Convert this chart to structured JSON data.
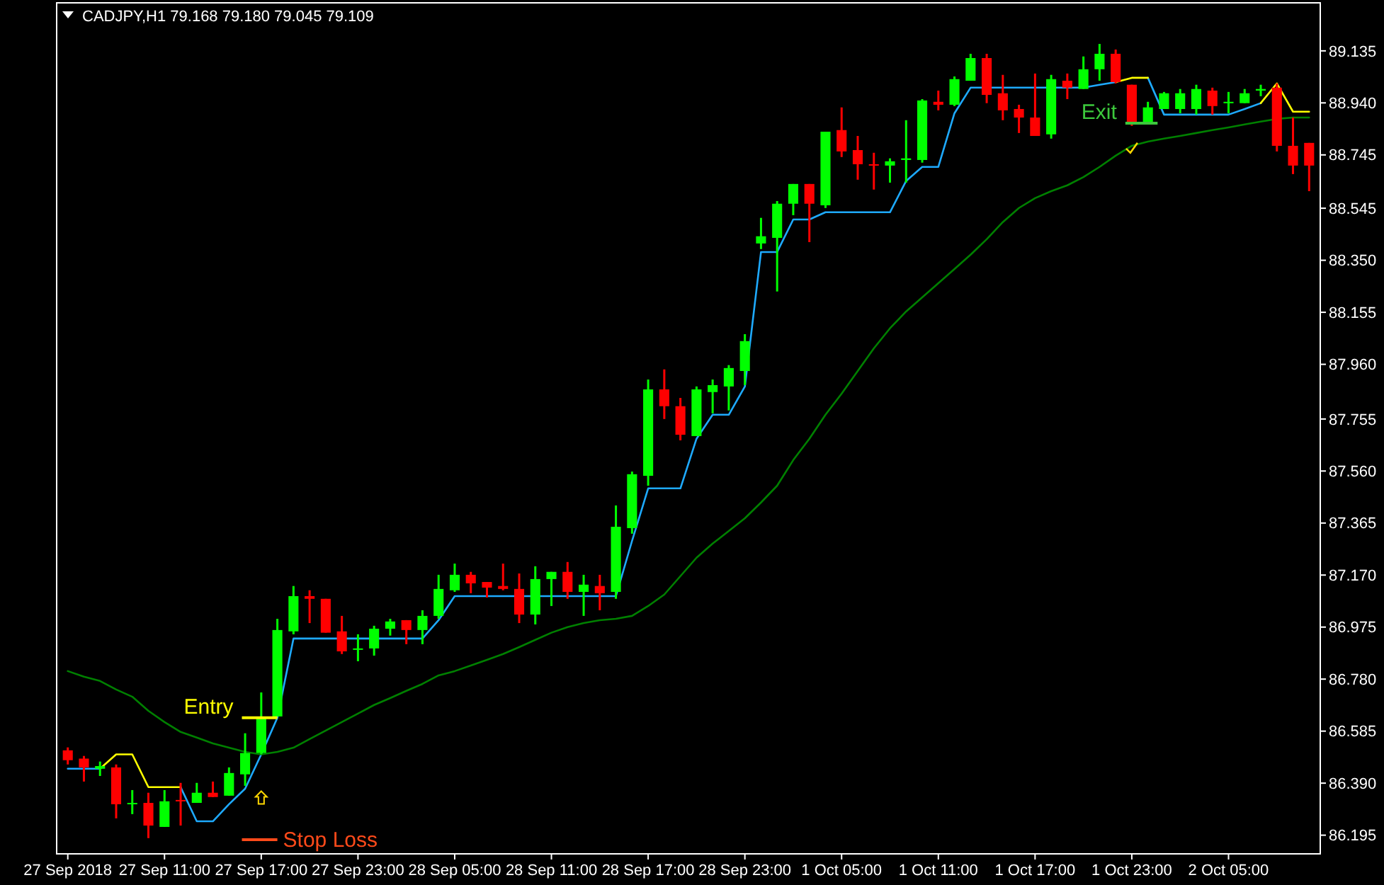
{
  "chart_data": {
    "type": "candlestick",
    "title": "CADJPY,H1  79.168 79.180 79.045 79.109",
    "categories": [
      "27 Sep 2018",
      null,
      null,
      null,
      null,
      null,
      "27 Sep 11:00",
      null,
      null,
      null,
      null,
      null,
      "27 Sep 17:00",
      null,
      null,
      null,
      null,
      null,
      "27 Sep 23:00",
      null,
      null,
      null,
      null,
      null,
      "28 Sep 05:00",
      null,
      null,
      null,
      null,
      null,
      "28 Sep 11:00",
      null,
      null,
      null,
      null,
      null,
      "28 Sep 17:00",
      null,
      null,
      null,
      null,
      null,
      "28 Sep 23:00",
      null,
      null,
      null,
      null,
      null,
      "1 Oct 05:00",
      null,
      null,
      null,
      null,
      null,
      "1 Oct 11:00",
      null,
      null,
      null,
      null,
      null,
      "1 Oct 17:00",
      null,
      null,
      null,
      null,
      null,
      "1 Oct 23:00",
      null,
      null,
      null,
      null,
      null,
      "2 Oct 05:00",
      null,
      null,
      null,
      null,
      null
    ],
    "ohlc": [
      [
        86.513,
        86.524,
        86.46,
        86.476
      ],
      [
        86.482,
        86.492,
        86.396,
        86.449
      ],
      [
        86.444,
        86.471,
        86.417,
        86.454
      ],
      [
        86.449,
        86.46,
        86.258,
        86.311
      ],
      [
        86.311,
        86.364,
        86.274,
        86.316
      ],
      [
        86.316,
        86.354,
        86.184,
        86.231
      ],
      [
        86.226,
        86.364,
        86.226,
        86.322
      ],
      [
        86.327,
        86.391,
        86.231,
        86.322
      ],
      [
        86.316,
        86.391,
        86.316,
        86.354
      ],
      [
        86.354,
        86.396,
        86.338,
        86.338
      ],
      [
        86.343,
        86.449,
        86.343,
        86.428
      ],
      [
        86.423,
        86.577,
        86.38,
        86.503
      ],
      [
        86.503,
        86.73,
        86.498,
        86.635
      ],
      [
        86.64,
        87.006,
        86.64,
        86.964
      ],
      [
        86.959,
        87.129,
        86.948,
        87.091
      ],
      [
        87.091,
        87.113,
        86.99,
        87.081
      ],
      [
        87.081,
        87.081,
        86.954,
        86.954
      ],
      [
        86.959,
        87.017,
        86.874,
        86.884
      ],
      [
        86.89,
        86.948,
        86.847,
        86.895
      ],
      [
        86.895,
        86.98,
        86.868,
        86.969
      ],
      [
        86.969,
        87.006,
        86.943,
        86.996
      ],
      [
        87.001,
        87.001,
        86.911,
        86.964
      ],
      [
        86.964,
        87.038,
        86.911,
        87.017
      ],
      [
        87.017,
        87.171,
        87.006,
        87.118
      ],
      [
        87.113,
        87.213,
        87.107,
        87.171
      ],
      [
        87.171,
        87.182,
        87.102,
        87.139
      ],
      [
        87.144,
        87.144,
        87.086,
        87.123
      ],
      [
        87.129,
        87.213,
        87.113,
        87.118
      ],
      [
        87.118,
        87.176,
        86.99,
        87.022
      ],
      [
        87.022,
        87.203,
        86.985,
        87.155
      ],
      [
        87.155,
        87.182,
        87.054,
        87.182
      ],
      [
        87.182,
        87.219,
        87.081,
        87.107
      ],
      [
        87.107,
        87.171,
        87.017,
        87.134
      ],
      [
        87.129,
        87.171,
        87.038,
        87.102
      ],
      [
        87.107,
        87.431,
        87.081,
        87.351
      ],
      [
        87.346,
        87.558,
        87.325,
        87.548
      ],
      [
        87.542,
        87.903,
        87.505,
        87.866
      ],
      [
        87.866,
        87.941,
        87.755,
        87.803
      ],
      [
        87.803,
        87.834,
        87.675,
        87.696
      ],
      [
        87.691,
        87.877,
        87.691,
        87.866
      ],
      [
        87.856,
        87.903,
        87.776,
        87.882
      ],
      [
        87.877,
        87.957,
        87.787,
        87.946
      ],
      [
        87.935,
        88.073,
        87.882,
        88.047
      ],
      [
        88.413,
        88.509,
        88.392,
        88.44
      ],
      [
        88.434,
        88.572,
        88.233,
        88.562
      ],
      [
        88.562,
        88.636,
        88.519,
        88.636
      ],
      [
        88.636,
        88.636,
        88.418,
        88.562
      ],
      [
        88.556,
        88.832,
        88.546,
        88.832
      ],
      [
        88.838,
        88.923,
        88.737,
        88.758
      ],
      [
        88.763,
        88.816,
        88.652,
        88.71
      ],
      [
        88.71,
        88.753,
        88.615,
        88.705
      ],
      [
        88.705,
        88.732,
        88.641,
        88.721
      ],
      [
        88.726,
        88.875,
        88.641,
        88.732
      ],
      [
        88.726,
        88.954,
        88.716,
        88.949
      ],
      [
        88.944,
        88.986,
        88.912,
        88.933
      ],
      [
        88.933,
        89.039,
        88.928,
        89.029
      ],
      [
        89.023,
        89.124,
        89.023,
        89.108
      ],
      [
        89.108,
        89.124,
        88.939,
        88.97
      ],
      [
        88.976,
        89.045,
        88.875,
        88.912
      ],
      [
        88.917,
        88.933,
        88.827,
        88.885
      ],
      [
        88.885,
        89.05,
        88.816,
        88.816
      ],
      [
        88.822,
        89.045,
        88.806,
        89.029
      ],
      [
        89.023,
        89.05,
        88.954,
        88.997
      ],
      [
        88.992,
        89.114,
        88.992,
        89.066
      ],
      [
        89.066,
        89.161,
        89.023,
        89.124
      ],
      [
        89.124,
        89.14,
        89.013,
        89.018
      ],
      [
        89.008,
        89.008,
        88.854,
        88.859
      ],
      [
        88.864,
        88.944,
        88.864,
        88.923
      ],
      [
        88.917,
        88.981,
        88.917,
        88.976
      ],
      [
        88.917,
        88.992,
        88.901,
        88.976
      ],
      [
        88.917,
        89.008,
        88.896,
        88.992
      ],
      [
        88.986,
        88.997,
        88.896,
        88.928
      ],
      [
        88.939,
        88.981,
        88.901,
        88.944
      ],
      [
        88.939,
        88.992,
        88.939,
        88.976
      ],
      [
        88.986,
        89.008,
        88.965,
        88.992
      ],
      [
        88.997,
        89.013,
        88.758,
        88.779
      ],
      [
        88.779,
        88.885,
        88.673,
        88.705
      ],
      [
        88.79,
        88.79,
        88.609,
        88.705
      ]
    ],
    "colors": [
      "#ff0000",
      "#ff0000",
      "#00ff00",
      "#ff0000",
      "#00ff00",
      "#ff0000",
      "#00ff00",
      "#ff0000",
      "#00ff00",
      "#ff0000",
      "#00ff00",
      "#00ff00",
      "#00ff00",
      "#00ff00",
      "#00ff00",
      "#ff0000",
      "#ff0000",
      "#ff0000",
      "#00ff00",
      "#00ff00",
      "#00ff00",
      "#ff0000",
      "#00ff00",
      "#00ff00",
      "#00ff00",
      "#ff0000",
      "#ff0000",
      "#ff0000",
      "#ff0000",
      "#00ff00",
      "#00ff00",
      "#ff0000",
      "#00ff00",
      "#ff0000",
      "#00ff00",
      "#00ff00",
      "#00ff00",
      "#ff0000",
      "#ff0000",
      "#00ff00",
      "#00ff00",
      "#00ff00",
      "#00ff00",
      "#00ff00",
      "#00ff00",
      "#00ff00",
      "#ff0000",
      "#00ff00",
      "#ff0000",
      "#ff0000",
      "#ff0000",
      "#00ff00",
      "#00ff00",
      "#00ff00",
      "#ff0000",
      "#00ff00",
      "#00ff00",
      "#ff0000",
      "#ff0000",
      "#ff0000",
      "#ff0000",
      "#00ff00",
      "#ff0000",
      "#00ff00",
      "#00ff00",
      "#ff0000",
      "#ff0000",
      "#00ff00",
      "#00ff00",
      "#00ff00",
      "#00ff00",
      "#ff0000",
      "#00ff00",
      "#00ff00",
      "#00ff00",
      "#ff0000",
      "#ff0000",
      "#ff0000"
    ],
    "series": [
      {
        "type": "line",
        "color": "#1eaaff",
        "values": [
          86.444,
          86.444,
          86.444,
          null,
          null,
          null,
          null,
          86.375,
          86.247,
          86.247,
          86.311,
          86.369,
          86.498,
          86.635,
          86.932,
          86.932,
          86.932,
          86.932,
          86.932,
          86.932,
          86.932,
          86.932,
          86.932,
          87.001,
          87.091,
          87.091,
          87.091,
          87.091,
          87.091,
          87.091,
          87.091,
          87.091,
          87.091,
          87.091,
          87.091,
          87.298,
          87.495,
          87.495,
          87.495,
          87.681,
          87.771,
          87.771,
          87.877,
          88.381,
          88.381,
          88.503,
          88.503,
          88.53,
          88.53,
          88.53,
          88.53,
          88.53,
          88.647,
          88.7,
          88.7,
          88.901,
          88.997,
          88.997,
          88.997,
          88.997,
          88.997,
          88.997,
          88.997,
          88.997,
          89.008,
          89.018,
          null,
          89.034,
          88.896,
          88.896,
          88.896,
          88.896,
          88.896,
          88.917,
          88.939,
          null,
          null,
          null
        ]
      },
      {
        "type": "line",
        "color": "#ffff00",
        "values": [
          null,
          null,
          86.444,
          86.498,
          86.498,
          86.375,
          86.375,
          86.375,
          null,
          null,
          null,
          null,
          null,
          null,
          null,
          null,
          null,
          null,
          null,
          null,
          null,
          null,
          null,
          null,
          null,
          null,
          null,
          null,
          null,
          null,
          null,
          null,
          null,
          null,
          null,
          null,
          null,
          null,
          null,
          null,
          null,
          null,
          null,
          null,
          null,
          null,
          null,
          null,
          null,
          null,
          null,
          null,
          null,
          null,
          null,
          null,
          null,
          null,
          null,
          null,
          null,
          null,
          null,
          null,
          null,
          89.018,
          89.034,
          89.034,
          null,
          null,
          null,
          null,
          null,
          null,
          88.939,
          89.013,
          88.907,
          88.907
        ]
      },
      {
        "type": "line",
        "color": "#008000",
        "values": [
          86.81,
          86.789,
          86.773,
          86.741,
          86.714,
          86.661,
          86.619,
          86.582,
          86.561,
          86.539,
          86.523,
          86.507,
          86.498,
          86.507,
          86.523,
          86.555,
          86.587,
          86.619,
          86.651,
          86.683,
          86.709,
          86.736,
          86.762,
          86.794,
          86.81,
          86.831,
          86.852,
          86.874,
          86.9,
          86.927,
          86.954,
          86.975,
          86.99,
          87.001,
          87.006,
          87.017,
          87.054,
          87.097,
          87.166,
          87.235,
          87.288,
          87.335,
          87.383,
          87.442,
          87.505,
          87.601,
          87.681,
          87.771,
          87.85,
          87.935,
          88.02,
          88.095,
          88.158,
          88.211,
          88.264,
          88.317,
          88.371,
          88.429,
          88.493,
          88.546,
          88.583,
          88.609,
          88.631,
          88.662,
          88.7,
          88.742,
          88.779,
          88.795,
          88.806,
          88.816,
          88.827,
          88.838,
          88.848,
          88.859,
          88.87,
          88.88,
          88.885,
          88.885
        ]
      }
    ],
    "ylim": [
      86.125,
      89.315
    ],
    "yticks": [
      89.135,
      {
        "value": 88.94,
        "label": "88.940"
      },
      88.745,
      88.545,
      {
        "value": 88.35,
        "label": "88.350"
      },
      88.155,
      {
        "value": 87.96,
        "label": "87.960"
      },
      87.755,
      {
        "value": 87.56,
        "label": "87.560"
      },
      87.365,
      {
        "value": 87.17,
        "label": "87.170"
      },
      86.975,
      {
        "value": 86.78,
        "label": "86.780"
      },
      86.585,
      {
        "value": 86.39,
        "label": "86.390"
      },
      86.195
    ],
    "annotations": [
      "Entry",
      "Exit",
      "Stop Loss"
    ]
  }
}
